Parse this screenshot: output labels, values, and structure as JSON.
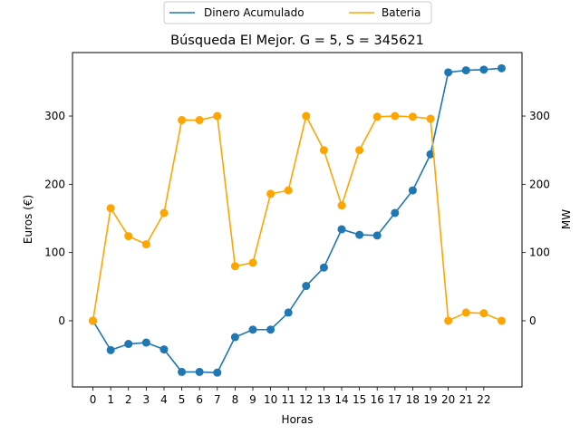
{
  "chart_data": {
    "type": "line",
    "title": "Búsqueda El Mejor. G = 5, S = 345621",
    "xlabel": "Horas",
    "ylabel_left": "Euros (€)",
    "ylabel_right": "MW",
    "x": [
      0,
      1,
      2,
      3,
      4,
      5,
      6,
      7,
      8,
      9,
      10,
      11,
      12,
      13,
      14,
      15,
      16,
      17,
      18,
      19,
      20,
      21,
      22,
      23
    ],
    "xtick_labels": [
      "0",
      "1",
      "2",
      "3",
      "4",
      "5",
      "6",
      "7",
      "8",
      "9",
      "10",
      "11",
      "12",
      "13",
      "14",
      "15",
      "16",
      "17",
      "18",
      "19",
      "20",
      "21",
      "22"
    ],
    "xlim": [
      -1.15,
      24.15
    ],
    "ylim_left": [
      -97,
      393
    ],
    "ylim_right": [
      -97,
      393
    ],
    "yticks_left": [
      0,
      100,
      200,
      300
    ],
    "yticks_right": [
      0,
      100,
      200,
      300
    ],
    "legend_location": "top-center",
    "grid": false,
    "series": [
      {
        "name": "Dinero Acumulado",
        "axis": "left",
        "color": "#1f77b4",
        "values": [
          0,
          -43,
          -34,
          -32,
          -42,
          -75,
          -75,
          -76,
          -24,
          -13,
          -13,
          12,
          51,
          78,
          134,
          126,
          125,
          158,
          191,
          244,
          364,
          367,
          368,
          370
        ]
      },
      {
        "name": "Bateria",
        "axis": "right",
        "color": "#ffa500",
        "values": [
          0,
          165,
          124,
          112,
          158,
          294,
          294,
          300,
          80,
          85,
          186,
          191,
          300,
          250,
          169,
          250,
          299,
          300,
          299,
          296,
          0,
          12,
          11,
          0
        ]
      }
    ]
  }
}
